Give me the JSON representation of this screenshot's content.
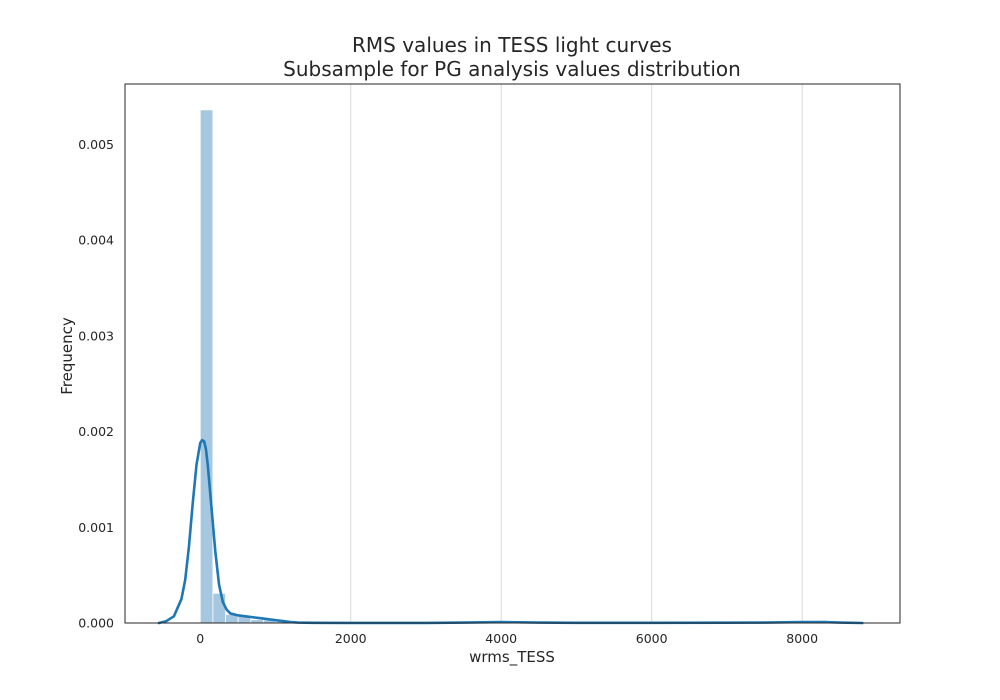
{
  "chart_data": {
    "type": "bar",
    "title": "RMS values in TESS light curves",
    "subtitle": "Subsample for PG analysis values distribution",
    "xlabel": "wrms_TESS",
    "ylabel": "Frequency",
    "xlim": [
      -1000,
      9300
    ],
    "ylim": [
      0,
      0.00563
    ],
    "x_ticks": [
      0,
      2000,
      4000,
      6000,
      8000
    ],
    "x_tick_labels": [
      "0",
      "2000",
      "4000",
      "6000",
      "8000"
    ],
    "y_ticks": [
      0,
      0.001,
      0.002,
      0.003,
      0.004,
      0.005
    ],
    "y_tick_labels": [
      "0.000",
      "0.001",
      "0.002",
      "0.003",
      "0.004",
      "0.005"
    ],
    "grid": "vertical",
    "histogram": {
      "bin_edges": [
        0,
        168,
        336,
        504,
        672,
        840,
        1008,
        1176,
        1344,
        1512,
        1680
      ],
      "frequencies": [
        0.00536,
        0.00031,
        9e-05,
        8e-05,
        3.5e-05,
        3e-05,
        2e-05,
        1e-05,
        5e-06,
        4e-06
      ],
      "color": "#a5c8e0"
    },
    "kde": {
      "color": "#1f77b4",
      "x": [
        -550,
        -450,
        -350,
        -250,
        -200,
        -150,
        -100,
        -50,
        0,
        25,
        50,
        75,
        100,
        150,
        200,
        250,
        300,
        350,
        400,
        500,
        600,
        700,
        800,
        900,
        1000,
        1100,
        1200,
        1300,
        1500,
        2000,
        3000,
        3500,
        4000,
        4500,
        5000,
        6000,
        7000,
        7500,
        8000,
        8300,
        8500,
        8800
      ],
      "y": [
        0,
        2e-05,
        7e-05,
        0.00025,
        0.00045,
        0.0008,
        0.00125,
        0.00165,
        0.00188,
        0.00191,
        0.0019,
        0.00182,
        0.00165,
        0.0012,
        0.00075,
        0.0004,
        0.00022,
        0.00014,
        0.0001,
        8e-05,
        7e-05,
        6e-05,
        5e-05,
        4e-05,
        3e-05,
        2e-05,
        1e-05,
        5e-06,
        2e-06,
        1e-06,
        1e-06,
        5e-06,
        1e-05,
        5e-06,
        2e-06,
        2e-06,
        3e-06,
        5e-06,
        1e-05,
        1e-05,
        5e-06,
        0
      ]
    }
  }
}
